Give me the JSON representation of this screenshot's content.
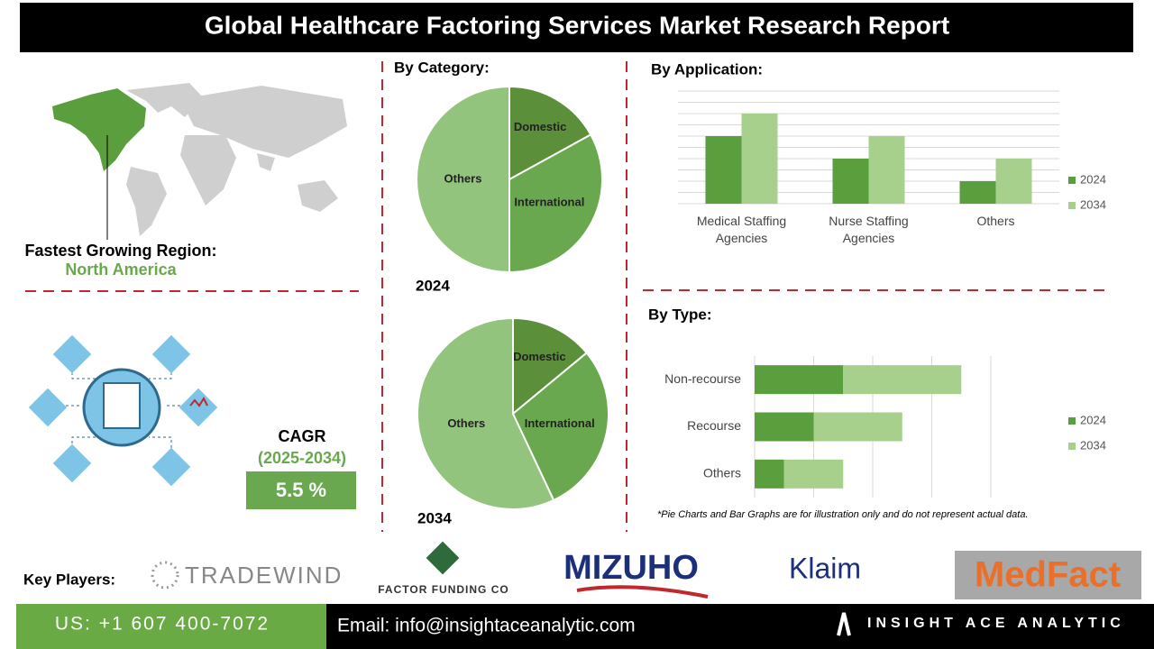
{
  "header": {
    "title": "Global Healthcare Factoring Services Market Research Report"
  },
  "region": {
    "label": "Fastest Growing Region:",
    "value": "North America"
  },
  "cagr": {
    "label": "CAGR",
    "period": "(2025-2034)",
    "value": "5.5 %"
  },
  "category_heading": "By Category:",
  "chart_data": [
    {
      "type": "pie",
      "title": "2024",
      "categories": [
        "Domestic",
        "International",
        "Others"
      ],
      "values": [
        17,
        33,
        50
      ],
      "colors": [
        "#5b8f3a",
        "#6aa84f",
        "#93c47d"
      ]
    },
    {
      "type": "pie",
      "title": "2034",
      "categories": [
        "Domestic",
        "International",
        "Others"
      ],
      "values": [
        14,
        29,
        57
      ],
      "colors": [
        "#5b8f3a",
        "#6aa84f",
        "#93c47d"
      ]
    },
    {
      "type": "bar",
      "title": "By Application:",
      "categories": [
        "Medical Staffing Agencies",
        "Nurse Staffing Agencies",
        "Others"
      ],
      "series": [
        {
          "name": "2024",
          "color": "#5a9e3e",
          "values": [
            6,
            4,
            2
          ]
        },
        {
          "name": "2034",
          "color": "#a8d08d",
          "values": [
            8,
            6,
            4
          ]
        }
      ],
      "ylim": [
        0,
        10
      ],
      "yticks": [
        0,
        1,
        2,
        3,
        4,
        5,
        6,
        7,
        8,
        9,
        10
      ],
      "grid": true,
      "legend": "right"
    },
    {
      "type": "stacked-barh",
      "title": "By Type:",
      "categories": [
        "Non-recourse",
        "Recourse",
        "Others"
      ],
      "series": [
        {
          "name": "2024",
          "color": "#5a9e3e",
          "values": [
            1.5,
            1,
            0.5
          ]
        },
        {
          "name": "2034",
          "color": "#a8d08d",
          "values": [
            2,
            1.5,
            1
          ]
        }
      ],
      "xlim": [
        0,
        4
      ],
      "xticks": [
        0,
        1,
        2,
        3,
        4
      ],
      "grid": true,
      "legend": "right"
    }
  ],
  "note": "*Pie Charts and Bar Graphs are for illustration only and do not represent actual data.",
  "key_players": {
    "label": "Key Players:",
    "companies": [
      "TRADEWIND",
      "FACTOR FUNDING CO",
      "MIZUHO",
      "Klaim",
      "MedFact"
    ]
  },
  "footer": {
    "phone": "US: +1 607 400-7072",
    "email": "Email: info@insightaceanalytic.com",
    "brand": "INSIGHT ACE ANALYTIC"
  }
}
